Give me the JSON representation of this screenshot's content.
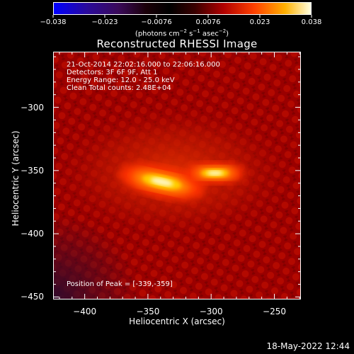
{
  "colorbar": {
    "ticks": [
      "−0.038",
      "−0.023",
      "−0.0076",
      "0.0076",
      "0.023",
      "0.038"
    ],
    "units_line": "(photons cm",
    "units_sup1": "−2",
    "units_mid": " s",
    "units_sup2": "−1",
    "units_end": " asec",
    "units_sup3": "−2",
    "units_close": ")"
  },
  "chart_data": {
    "type": "heatmap",
    "title": "Reconstructed RHESSI Image",
    "xlabel": "Heliocentric X (arcsec)",
    "ylabel": "Heliocentric Y (arcsec)",
    "xlim": [
      -425,
      -229
    ],
    "ylim": [
      -452,
      -256
    ],
    "x_ticks": [
      -400,
      -350,
      -300,
      -250
    ],
    "y_ticks": [
      -300,
      -350,
      -400,
      -450
    ],
    "x_tick_labels": [
      "−400",
      "−350",
      "−300",
      "−250"
    ],
    "y_tick_labels": [
      "−300",
      "−350",
      "−400",
      "−450"
    ],
    "colormap": "hot",
    "vmin": -0.038,
    "vmax": 0.038,
    "sources": [
      {
        "x": -339,
        "y": -359,
        "peak": 0.038
      },
      {
        "x": -297,
        "y": -352,
        "peak": 0.026
      }
    ],
    "annotations": [
      "21-Oct-2014 22:02:16.000 to 22:06:16.000",
      "Detectors: 3F 6F 9F, Att 1",
      "Energy Range: 12.0 - 25.0 keV",
      "Clean     Total counts: 2.48E+04"
    ],
    "peak_label": "Position of Peak = [-339,-359]"
  },
  "footer": {
    "timestamp": "18-May-2022 12:44"
  }
}
